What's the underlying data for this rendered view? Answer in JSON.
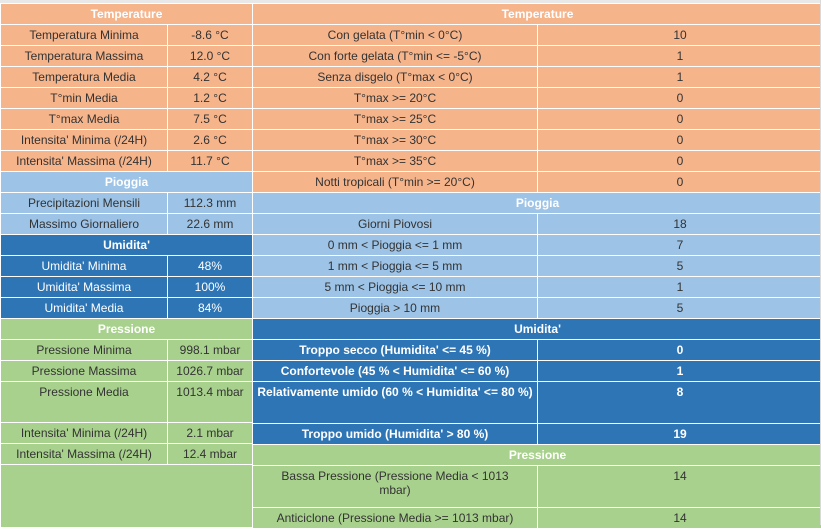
{
  "left": {
    "temperature": {
      "title": "Temperature",
      "rows": [
        {
          "label": "Temperatura Minima",
          "value": "-8.6 °C"
        },
        {
          "label": "Temperatura Massima",
          "value": "12.0 °C"
        },
        {
          "label": "Temperatura Media",
          "value": "4.2 °C"
        },
        {
          "label": "T°min Media",
          "value": "1.2 °C"
        },
        {
          "label": "T°max Media",
          "value": "7.5 °C"
        },
        {
          "label": "Intensita' Minima (/24H)",
          "value": "2.6 °C"
        },
        {
          "label": "Intensita' Massima (/24H)",
          "value": "11.7 °C"
        }
      ]
    },
    "pioggia": {
      "title": "Pioggia",
      "rows": [
        {
          "label": "Precipitazioni Mensili",
          "value": "112.3 mm"
        },
        {
          "label": "Massimo Giornaliero",
          "value": "22.6 mm"
        }
      ]
    },
    "umidita": {
      "title": "Umidita'",
      "rows": [
        {
          "label": "Umidita' Minima",
          "value": "48%"
        },
        {
          "label": "Umidita' Massima",
          "value": "100%"
        },
        {
          "label": "Umidita' Media",
          "value": "84%"
        }
      ]
    },
    "pressione": {
      "title": "Pressione",
      "rows": [
        {
          "label": "Pressione Minima",
          "value": "998.1 mbar"
        },
        {
          "label": "Pressione Massima",
          "value": "1026.7 mbar"
        },
        {
          "label": "Pressione Media",
          "value": "1013.4 mbar"
        },
        {
          "label": "Intensita' Minima (/24H)",
          "value": "2.1 mbar"
        },
        {
          "label": "Intensita' Massima (/24H)",
          "value": "12.4 mbar"
        }
      ]
    }
  },
  "right": {
    "temperature": {
      "title": "Temperature",
      "rows": [
        {
          "label": "Con gelata (T°min < 0°C)",
          "value": "10"
        },
        {
          "label": "Con forte gelata (T°min <= -5°C)",
          "value": "1"
        },
        {
          "label": "Senza disgelo (T°max < 0°C)",
          "value": "1"
        },
        {
          "label": "T°max >= 20°C",
          "value": "0"
        },
        {
          "label": "T°max >= 25°C",
          "value": "0"
        },
        {
          "label": "T°max >= 30°C",
          "value": "0"
        },
        {
          "label": "T°max >= 35°C",
          "value": "0"
        },
        {
          "label": "Notti tropicali (T°min >= 20°C)",
          "value": "0"
        }
      ]
    },
    "pioggia": {
      "title": "Pioggia",
      "rows": [
        {
          "label": "Giorni Piovosi",
          "value": "18"
        },
        {
          "label": "0 mm < Pioggia <= 1 mm",
          "value": "7"
        },
        {
          "label": "1 mm < Pioggia <= 5 mm",
          "value": "5"
        },
        {
          "label": "5 mm < Pioggia <= 10 mm",
          "value": "1"
        },
        {
          "label": "Pioggia > 10 mm",
          "value": "5"
        }
      ]
    },
    "umidita": {
      "title": "Umidita'",
      "rows": [
        {
          "label": "Troppo secco (Humidita' <= 45 %)",
          "value": "0"
        },
        {
          "label": "Confortevole (45 % < Humidita' <= 60 %)",
          "value": "1"
        },
        {
          "label": "Relativamente umido (60 % < Humidita' <= 80 %)",
          "value": "8"
        },
        {
          "label": "Troppo umido (Humidita' > 80 %)",
          "value": "19"
        }
      ]
    },
    "pressione": {
      "title": "Pressione",
      "rows": [
        {
          "label": "Bassa Pressione (Pressione Media < 1013 mbar)",
          "value": "14"
        },
        {
          "label": "Anticiclone (Pressione Media >= 1013 mbar)",
          "value": "14"
        }
      ]
    }
  }
}
